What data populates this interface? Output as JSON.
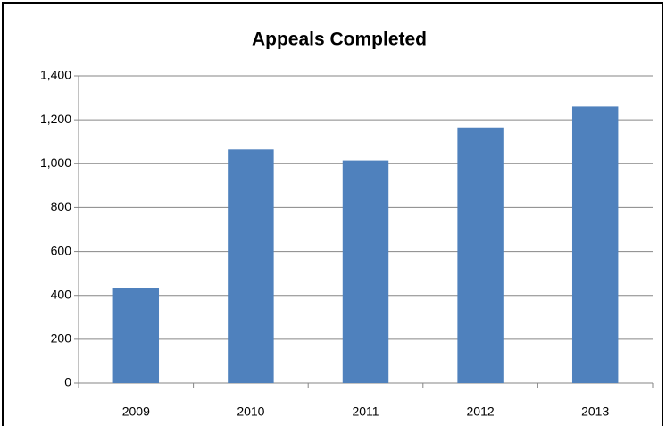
{
  "chart_data": {
    "type": "bar",
    "title": "Appeals Completed",
    "categories": [
      "2009",
      "2010",
      "2011",
      "2012",
      "2013"
    ],
    "values": [
      435,
      1065,
      1015,
      1165,
      1260
    ],
    "color": "#4f81bd",
    "ylim": [
      0,
      1400
    ],
    "yticks": [
      0,
      200,
      400,
      600,
      800,
      {
        "value": 1000,
        "label": "1,000"
      },
      {
        "value": 1200,
        "label": "1,200"
      },
      {
        "value": 1400,
        "label": "1,400"
      }
    ],
    "grid": true
  }
}
